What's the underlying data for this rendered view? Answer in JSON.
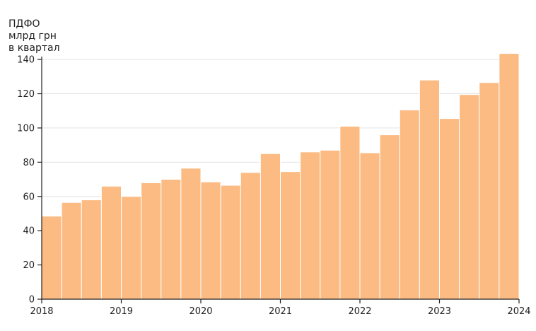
{
  "chart_data": {
    "type": "bar",
    "ylabel": [
      "ПДФО",
      "млрд грн",
      "в квартал"
    ],
    "xlabel": "",
    "xlim": [
      2018,
      2024
    ],
    "ylim": [
      0,
      145
    ],
    "xticks": [
      "2018",
      "2019",
      "2020",
      "2021",
      "2022",
      "2023",
      "2024"
    ],
    "yticks": [
      "0",
      "20",
      "40",
      "60",
      "80",
      "100",
      "120",
      "140"
    ],
    "grid": true,
    "bar_color": "#fbbb82",
    "categories": [
      "2018 Q1",
      "2018 Q2",
      "2018 Q3",
      "2018 Q4",
      "2019 Q1",
      "2019 Q2",
      "2019 Q3",
      "2019 Q4",
      "2020 Q1",
      "2020 Q2",
      "2020 Q3",
      "2020 Q4",
      "2021 Q1",
      "2021 Q2",
      "2021 Q3",
      "2021 Q4",
      "2022 Q1",
      "2022 Q2",
      "2022 Q3",
      "2022 Q4",
      "2023 Q1",
      "2023 Q2",
      "2023 Q3",
      "2023 Q4"
    ],
    "values": [
      48.5,
      56.5,
      58,
      66,
      60,
      68,
      70,
      76.5,
      68.5,
      66.5,
      74,
      85,
      74.5,
      86,
      87,
      101,
      85.5,
      96,
      110.5,
      128,
      105.5,
      119.5,
      126.5,
      143.5
    ]
  }
}
